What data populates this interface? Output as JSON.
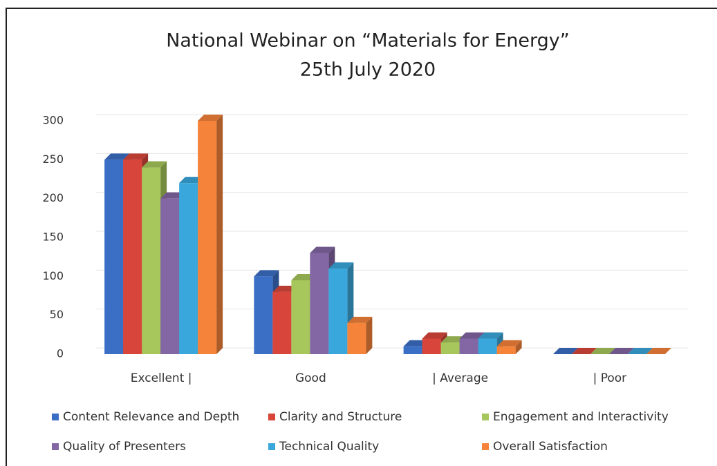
{
  "chart_data": {
    "type": "bar3d",
    "title": "National Webinar on “Materials for Energy”",
    "subtitle": "25th July 2020",
    "categories": [
      "Excellent |",
      "Good",
      "| Average",
      "| Poor"
    ],
    "series": [
      {
        "name": "Content Relevance and Depth",
        "color": "#3b6fc6",
        "values": [
          250,
          100,
          10,
          0
        ]
      },
      {
        "name": "Clarity and Structure",
        "color": "#d8463b",
        "values": [
          250,
          80,
          20,
          0
        ]
      },
      {
        "name": "Engagement and Interactivity",
        "color": "#a7c65c",
        "values": [
          240,
          95,
          15,
          0
        ]
      },
      {
        "name": "Quality of Presenters",
        "color": "#8366a4",
        "values": [
          200,
          130,
          20,
          0
        ]
      },
      {
        "name": "Technical Quality",
        "color": "#3aa7dc",
        "values": [
          220,
          110,
          20,
          0
        ]
      },
      {
        "name": "Overall Satisfaction",
        "color": "#f5833a",
        "values": [
          300,
          40,
          10,
          0
        ]
      }
    ],
    "ylim": [
      0,
      300
    ],
    "yticks": [
      0,
      50,
      100,
      150,
      200,
      250,
      300
    ],
    "grid": true
  }
}
